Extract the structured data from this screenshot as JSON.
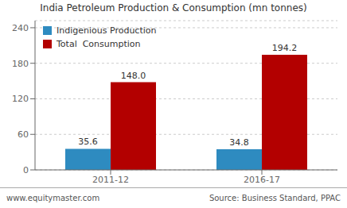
{
  "chart_data": {
    "type": "bar",
    "title": "India Petroleum Production & Consumption (mn tonnes)",
    "categories": [
      "2011-12",
      "2016-17"
    ],
    "series": [
      {
        "name": "Indigenious Production",
        "color": "#2e8bc0",
        "values": [
          35.6,
          34.8
        ],
        "value_labels": [
          "35.6",
          "34.8"
        ]
      },
      {
        "name": "Total  Consumption",
        "color": "#b30000",
        "values": [
          148.0,
          194.2
        ],
        "value_labels": [
          "148.0",
          "194.2"
        ]
      }
    ],
    "ylim": [
      0,
      252
    ],
    "yticks": [
      0,
      60,
      120,
      180,
      240
    ],
    "grid": true,
    "data_labels": true,
    "legend": "upper left",
    "annotations": [
      "www.equitymaster.com",
      "Source: Business Standard, PPAC"
    ]
  }
}
